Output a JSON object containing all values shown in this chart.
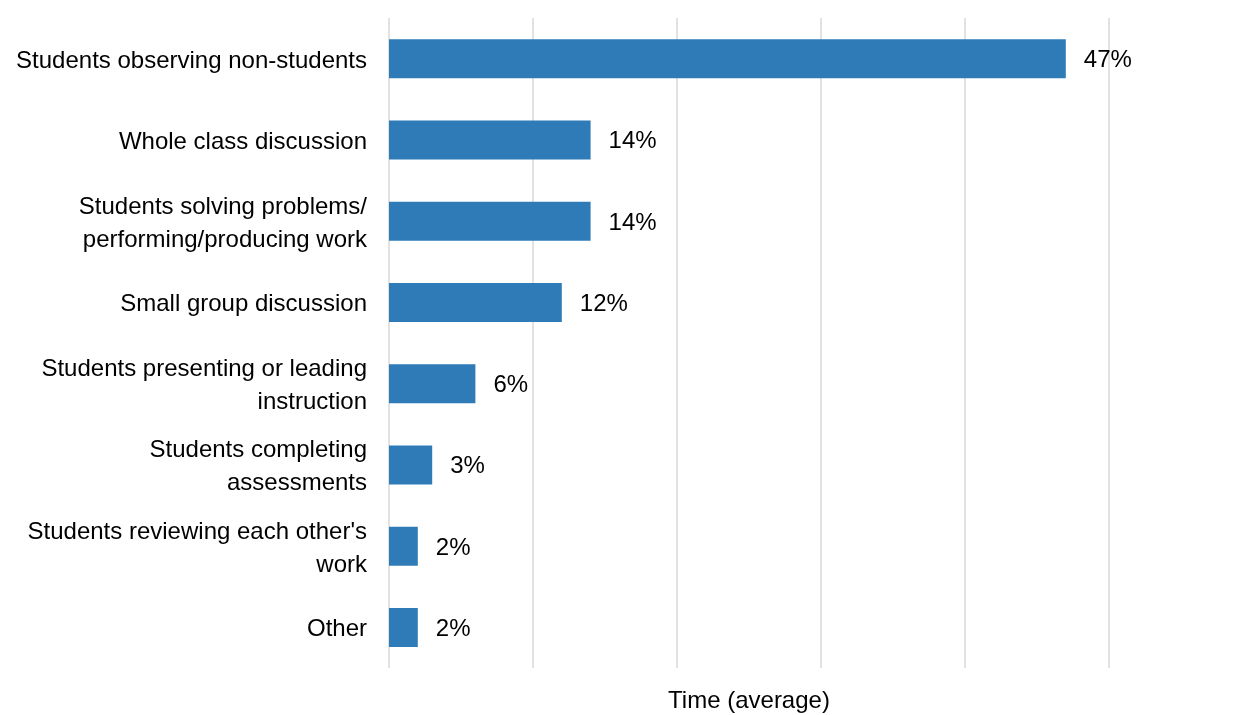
{
  "chart_data": {
    "type": "bar",
    "orientation": "horizontal",
    "xlabel": "Time (average)",
    "categories": [
      "Students observing non-students",
      "Whole class discussion",
      "Students solving problems/ performing/producing work",
      "Small group discussion",
      "Students presenting or leading instruction",
      "Students completing assessments",
      "Students reviewing each other's work",
      "Other"
    ],
    "values": [
      47,
      14,
      14,
      12,
      6,
      3,
      2,
      2
    ],
    "value_labels": [
      "47%",
      "14%",
      "14%",
      "12%",
      "6%",
      "3%",
      "2%",
      "2%"
    ],
    "color": "#2e7bb8",
    "xlim": [
      0,
      50
    ],
    "xticks": [
      {
        "value": 0,
        "label": null
      },
      {
        "value": 10,
        "label": null
      },
      {
        "value": 20,
        "label": null
      },
      {
        "value": 30,
        "label": null
      },
      {
        "value": 40,
        "label": null
      },
      {
        "value": 50,
        "label": null
      }
    ],
    "tick_labels": "y",
    "grid": "x",
    "legend": false
  }
}
